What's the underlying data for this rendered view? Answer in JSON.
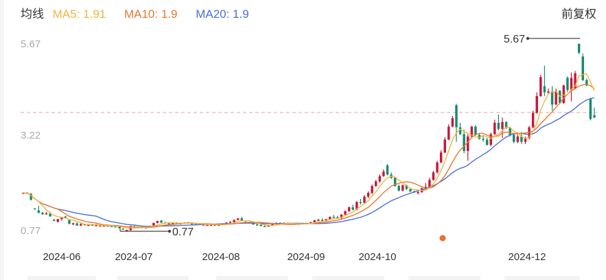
{
  "header": {
    "legend_title": "均线",
    "ma5_label": "MA5: 1.91",
    "ma10_label": "MA10: 1.9",
    "ma20_label": "MA20: 1.9",
    "adjust_mode": "前复权"
  },
  "colors": {
    "ma5": "#f0b540",
    "ma10": "#e8772e",
    "ma20": "#4a6fd4",
    "up": "#c8173a",
    "down": "#168a6f",
    "ref_line": "#e8a0a0",
    "marker": "#f06a35"
  },
  "annotations": {
    "max_label": "5.67",
    "min_label": "0.77"
  },
  "chart_data": {
    "type": "candlestick",
    "title": "",
    "xlabel": "",
    "ylabel": "",
    "ylim": [
      0.77,
      5.67
    ],
    "y_ticks": [
      "5.67",
      "3.22",
      "0.77"
    ],
    "x_ticks": [
      "2024-06",
      "2024-07",
      "2024-08",
      "2024-09",
      "2024-10",
      "2024-12"
    ],
    "reference_line": 3.87,
    "max_point": 5.67,
    "min_point": 0.77,
    "legend": [
      "MA5: 1.91",
      "MA10: 1.9",
      "MA20: 1.9"
    ],
    "grid": false,
    "candles": [
      [
        1.75,
        1.77,
        1.74,
        1.76
      ],
      [
        1.76,
        1.78,
        1.74,
        1.74
      ],
      [
        1.74,
        1.75,
        1.56,
        1.58
      ],
      [
        1.35,
        1.36,
        1.33,
        1.34
      ],
      [
        1.3,
        1.42,
        1.22,
        1.24
      ],
      [
        1.24,
        1.26,
        1.18,
        1.2
      ],
      [
        1.2,
        1.26,
        1.19,
        1.22
      ],
      [
        1.22,
        1.26,
        1.15,
        1.14
      ],
      [
        1.05,
        1.08,
        1.02,
        1.04
      ],
      [
        1.0,
        1.08,
        0.98,
        1.07
      ],
      [
        1.07,
        1.12,
        1.03,
        1.12
      ],
      [
        1.14,
        1.16,
        1.1,
        1.12
      ],
      [
        1.05,
        1.06,
        0.93,
        0.95
      ],
      [
        0.95,
        0.98,
        0.91,
        0.96
      ],
      [
        0.96,
        0.98,
        0.9,
        0.9
      ],
      [
        0.9,
        0.96,
        0.89,
        0.94
      ],
      [
        0.94,
        0.95,
        0.9,
        0.93
      ],
      [
        0.92,
        0.93,
        0.9,
        0.92
      ],
      [
        0.92,
        0.95,
        0.9,
        0.91
      ],
      [
        0.91,
        0.95,
        0.89,
        0.91
      ],
      [
        0.9,
        0.91,
        0.88,
        0.89
      ],
      [
        0.89,
        0.91,
        0.88,
        0.9
      ],
      [
        0.9,
        0.91,
        0.88,
        0.89
      ],
      [
        0.89,
        0.9,
        0.87,
        0.88
      ],
      [
        0.88,
        0.9,
        0.86,
        0.87
      ],
      [
        0.86,
        0.87,
        0.85,
        0.85
      ],
      [
        0.82,
        0.83,
        0.8,
        0.81
      ],
      [
        0.78,
        0.79,
        0.77,
        0.79
      ],
      [
        0.78,
        0.9,
        0.77,
        0.89
      ],
      [
        0.86,
        0.92,
        0.84,
        0.85
      ],
      [
        0.85,
        0.87,
        0.83,
        0.87
      ],
      [
        0.86,
        0.87,
        0.83,
        0.84
      ],
      [
        0.84,
        0.86,
        0.82,
        0.86
      ],
      [
        0.86,
        0.9,
        0.85,
        0.89
      ],
      [
        0.9,
        0.98,
        0.89,
        0.97
      ],
      [
        0.97,
        1.03,
        0.96,
        1.02
      ],
      [
        1.03,
        1.05,
        0.97,
        0.98
      ],
      [
        0.98,
        1.0,
        0.96,
        0.97
      ],
      [
        0.96,
        0.98,
        0.94,
        0.95
      ],
      [
        0.95,
        0.98,
        0.93,
        0.97
      ],
      [
        0.97,
        0.99,
        0.95,
        0.96
      ],
      [
        0.96,
        0.98,
        0.94,
        0.96
      ],
      [
        0.96,
        0.99,
        0.95,
        0.98
      ],
      [
        0.98,
        1.0,
        0.96,
        0.97
      ],
      [
        0.97,
        0.98,
        0.93,
        0.93
      ],
      [
        0.93,
        0.95,
        0.92,
        0.94
      ],
      [
        0.94,
        0.96,
        0.92,
        0.93
      ],
      [
        0.93,
        0.95,
        0.92,
        0.93
      ],
      [
        0.92,
        0.93,
        0.9,
        0.92
      ],
      [
        0.92,
        0.94,
        0.91,
        0.92
      ],
      [
        0.92,
        0.93,
        0.9,
        0.91
      ],
      [
        0.91,
        0.93,
        0.9,
        0.92
      ],
      [
        0.92,
        0.95,
        0.91,
        0.94
      ],
      [
        0.94,
        0.99,
        0.93,
        0.98
      ],
      [
        0.98,
        1.02,
        0.96,
        0.99
      ],
      [
        0.99,
        1.06,
        0.98,
        1.05
      ],
      [
        1.05,
        1.1,
        1.04,
        1.09
      ],
      [
        1.09,
        1.13,
        1.02,
        1.03
      ],
      [
        1.0,
        1.02,
        0.97,
        0.98
      ],
      [
        0.98,
        1.0,
        0.96,
        0.99
      ],
      [
        0.99,
        1.01,
        0.92,
        0.93
      ],
      [
        0.93,
        0.96,
        0.9,
        0.92
      ],
      [
        0.92,
        0.95,
        0.88,
        0.89
      ],
      [
        0.89,
        0.92,
        0.87,
        0.88
      ],
      [
        0.88,
        0.92,
        0.87,
        0.9
      ],
      [
        0.9,
        0.95,
        0.89,
        0.94
      ],
      [
        0.94,
        0.99,
        0.93,
        0.97
      ],
      [
        0.97,
        0.99,
        0.94,
        0.96
      ],
      [
        0.96,
        0.99,
        0.95,
        0.97
      ],
      [
        0.97,
        0.98,
        0.94,
        0.95
      ],
      [
        0.95,
        0.97,
        0.92,
        0.93
      ],
      [
        0.93,
        0.96,
        0.92,
        0.95
      ],
      [
        0.95,
        0.97,
        0.93,
        0.94
      ],
      [
        0.94,
        0.96,
        0.93,
        0.96
      ],
      [
        0.96,
        0.97,
        0.94,
        0.95
      ],
      [
        0.95,
        1.0,
        0.94,
        0.99
      ],
      [
        0.99,
        1.05,
        0.98,
        1.04
      ],
      [
        1.04,
        1.08,
        1.02,
        1.05
      ],
      [
        1.05,
        1.09,
        1.01,
        1.02
      ],
      [
        1.02,
        1.08,
        1.01,
        1.07
      ],
      [
        1.07,
        1.14,
        1.06,
        1.13
      ],
      [
        1.13,
        1.18,
        1.1,
        1.12
      ],
      [
        1.12,
        1.16,
        1.08,
        1.1
      ],
      [
        1.1,
        1.2,
        1.08,
        1.19
      ],
      [
        1.19,
        1.3,
        1.17,
        1.28
      ],
      [
        1.28,
        1.4,
        1.26,
        1.38
      ],
      [
        1.38,
        1.45,
        1.3,
        1.32
      ],
      [
        1.32,
        1.55,
        1.3,
        1.52
      ],
      [
        1.52,
        1.6,
        1.45,
        1.5
      ],
      [
        1.5,
        1.7,
        1.48,
        1.66
      ],
      [
        1.66,
        1.8,
        1.62,
        1.76
      ],
      [
        1.76,
        1.98,
        1.72,
        1.94
      ],
      [
        1.94,
        2.1,
        1.92,
        2.06
      ],
      [
        2.06,
        2.25,
        2.02,
        2.2
      ],
      [
        2.2,
        2.38,
        2.18,
        2.32
      ],
      [
        2.48,
        2.52,
        2.22,
        2.24
      ],
      [
        2.24,
        2.3,
        2.12,
        2.16
      ],
      [
        2.16,
        2.18,
        1.92,
        1.94
      ],
      [
        1.94,
        1.98,
        1.8,
        1.82
      ],
      [
        1.82,
        1.98,
        1.8,
        1.96
      ],
      [
        1.96,
        1.98,
        1.84,
        1.86
      ],
      [
        1.86,
        1.88,
        1.78,
        1.8
      ],
      [
        1.8,
        1.82,
        1.76,
        1.78
      ],
      [
        1.76,
        1.8,
        1.72,
        1.78
      ],
      [
        1.78,
        1.9,
        1.76,
        1.88
      ],
      [
        1.88,
        2.02,
        1.84,
        1.92
      ],
      [
        1.92,
        2.16,
        1.88,
        2.1
      ],
      [
        2.1,
        2.34,
        2.08,
        2.3
      ],
      [
        2.3,
        2.6,
        2.26,
        2.56
      ],
      [
        2.56,
        2.88,
        2.54,
        2.82
      ],
      [
        2.82,
        3.22,
        2.8,
        3.16
      ],
      [
        3.16,
        3.56,
        3.14,
        3.5
      ],
      [
        3.5,
        3.78,
        3.48,
        3.72
      ],
      [
        4.06,
        4.1,
        3.1,
        3.48
      ],
      [
        3.48,
        3.6,
        3.28,
        3.3
      ],
      [
        3.3,
        3.42,
        2.8,
        2.86
      ],
      [
        2.86,
        3.3,
        2.6,
        3.24
      ],
      [
        3.24,
        3.52,
        3.2,
        3.5
      ],
      [
        3.5,
        3.54,
        3.26,
        3.28
      ],
      [
        3.28,
        3.32,
        3.16,
        3.18
      ],
      [
        3.18,
        3.26,
        3.1,
        3.16
      ],
      [
        3.16,
        3.2,
        3.0,
        3.02
      ],
      [
        3.02,
        3.34,
        2.98,
        3.3
      ],
      [
        3.3,
        3.68,
        3.28,
        3.6
      ],
      [
        3.6,
        3.82,
        3.4,
        3.44
      ],
      [
        3.44,
        3.74,
        3.2,
        3.62
      ],
      [
        3.62,
        3.64,
        3.44,
        3.46
      ],
      [
        3.46,
        3.5,
        3.24,
        3.28
      ],
      [
        3.28,
        3.34,
        3.06,
        3.1
      ],
      [
        3.1,
        3.3,
        3.06,
        3.24
      ],
      [
        3.24,
        3.36,
        3.04,
        3.1
      ],
      [
        3.1,
        3.24,
        3.04,
        3.2
      ],
      [
        3.2,
        3.52,
        3.16,
        3.48
      ],
      [
        3.48,
        3.92,
        3.46,
        3.86
      ],
      [
        3.86,
        4.4,
        3.84,
        4.3
      ],
      [
        4.3,
        4.86,
        4.28,
        4.8
      ],
      [
        4.56,
        5.1,
        4.3,
        4.4
      ],
      [
        4.4,
        4.5,
        4.34,
        4.42
      ],
      [
        4.42,
        4.56,
        3.92,
        4.08
      ],
      [
        4.08,
        4.5,
        4.06,
        4.44
      ],
      [
        4.44,
        4.46,
        4.1,
        4.12
      ],
      [
        4.12,
        4.6,
        4.1,
        4.58
      ],
      [
        4.78,
        4.82,
        4.4,
        4.46
      ],
      [
        4.46,
        4.92,
        4.16,
        4.78
      ],
      [
        4.5,
        4.96,
        4.48,
        4.9
      ],
      [
        5.67,
        5.68,
        5.4,
        5.44
      ],
      [
        5.34,
        5.42,
        4.7,
        4.72
      ],
      [
        4.72,
        4.76,
        4.56,
        4.58
      ],
      [
        4.22,
        4.26,
        3.66,
        3.7
      ],
      [
        3.8,
        4.0,
        3.72,
        3.74
      ]
    ],
    "series": [
      {
        "name": "MA5",
        "values": []
      },
      {
        "name": "MA10",
        "values": []
      },
      {
        "name": "MA20",
        "values": []
      }
    ]
  }
}
